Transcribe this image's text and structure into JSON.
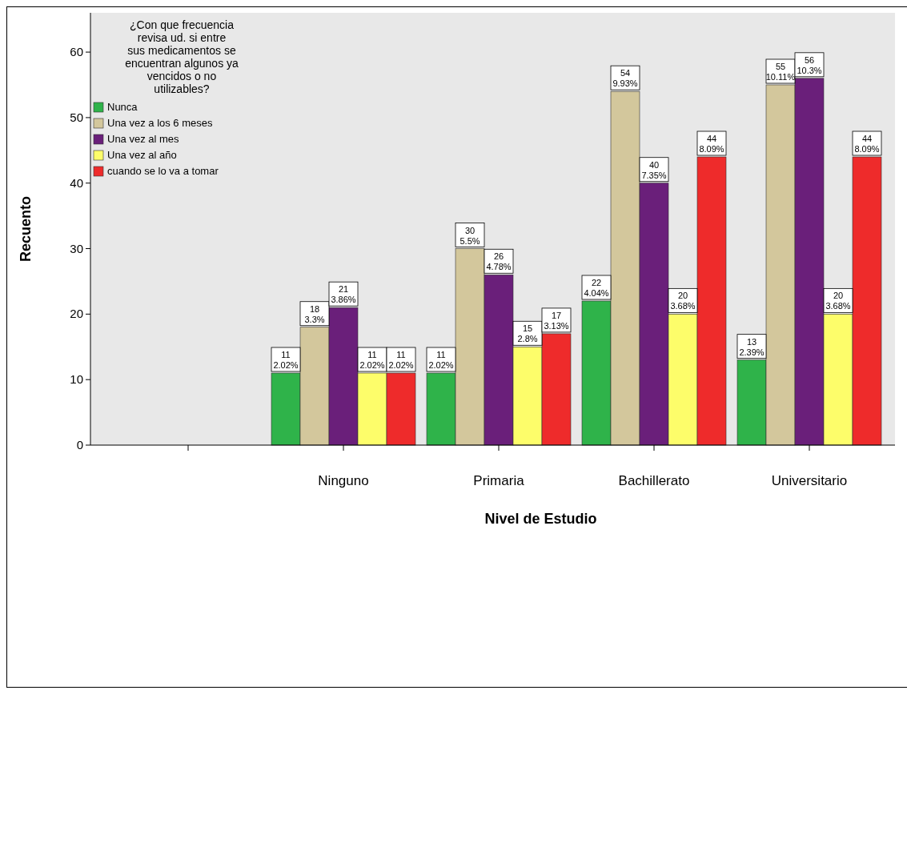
{
  "chart_data": {
    "type": "bar",
    "xlabel": "Nivel de Estudio",
    "ylabel": "Recuento",
    "legend_title": "¿Con que frecuencia revisa ud. si entre sus medicamentos se encuentran algunos ya vencidos o no utilizables?",
    "legend": "top left",
    "categories": [
      null,
      "Ninguno",
      "Primaria",
      "Bachillerato",
      "Universitario"
    ],
    "ylim": [
      0,
      66
    ],
    "yticks": [
      0,
      10,
      20,
      30,
      40,
      50,
      60
    ],
    "series": [
      {
        "name": "Nunca",
        "color": "#2fb34a",
        "values": [
          null,
          11,
          11,
          22,
          13
        ],
        "value_labels": [
          null,
          "11\n2.02%",
          "11\n2.02%",
          "22\n4.04%",
          "13\n2.39%"
        ]
      },
      {
        "name": "Una vez a los 6 meses",
        "color": "#d3c79c",
        "values": [
          null,
          18,
          30,
          54,
          55
        ],
        "value_labels": [
          null,
          "18\n3.3%",
          "30\n5.5%",
          "54\n9.93%",
          "55\n10.11%"
        ]
      },
      {
        "name": "Una vez al mes",
        "color": "#6a1f7a",
        "values": [
          null,
          21,
          26,
          40,
          56
        ],
        "value_labels": [
          null,
          "21\n3.86%",
          "26\n4.78%",
          "40\n7.35%",
          "56\n10.3%"
        ]
      },
      {
        "name": "Una vez al año",
        "color": "#fdfd6a",
        "values": [
          null,
          11,
          15,
          20,
          20
        ],
        "value_labels": [
          null,
          "11\n2.02%",
          "15\n2.8%",
          "20\n3.68%",
          "20\n3.68%"
        ]
      },
      {
        "name": "cuando se lo va a tomar",
        "color": "#ee2b2b",
        "values": [
          null,
          11,
          17,
          44,
          44
        ],
        "value_labels": [
          null,
          "11\n2.02%",
          "17\n3.13%",
          "44\n8.09%",
          "44\n8.09%"
        ]
      }
    ]
  }
}
